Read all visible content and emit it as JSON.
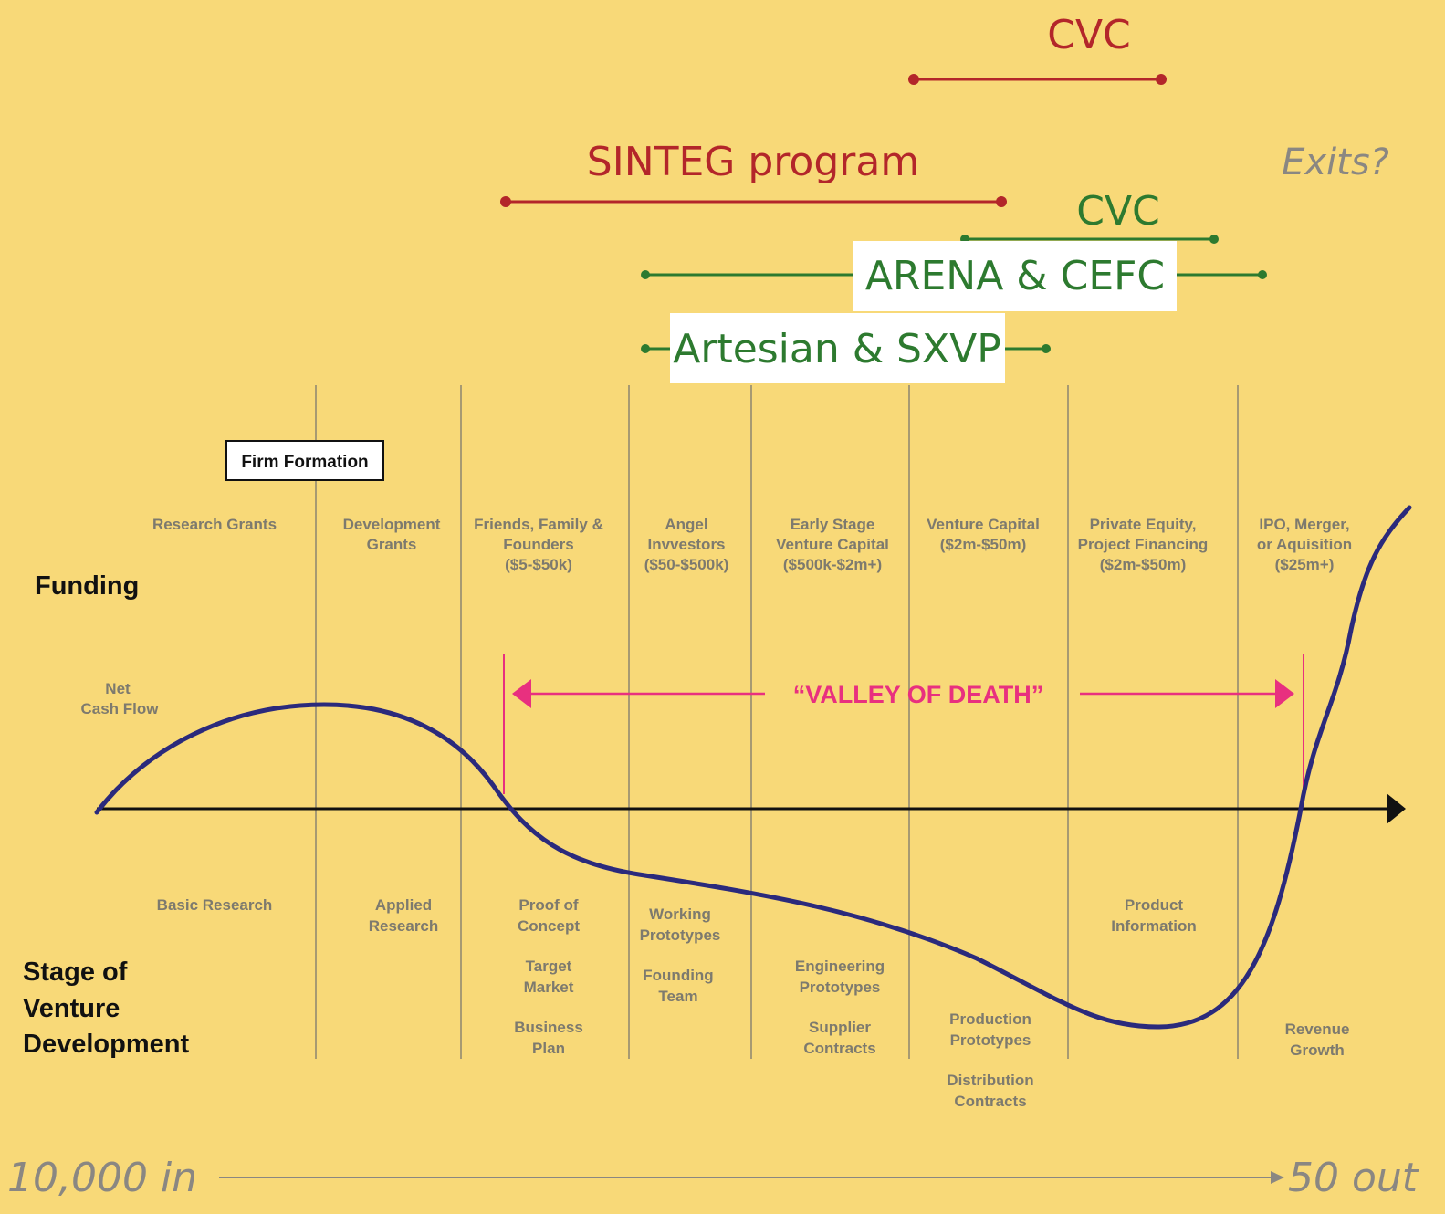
{
  "programs": [
    {
      "id": "cvc-top",
      "label": "CVC",
      "color": "#b3262a"
    },
    {
      "id": "sinteg",
      "label": "SINTEG program",
      "color": "#b3262a"
    },
    {
      "id": "cvc-green",
      "label": "CVC",
      "color": "#2d7a2f"
    },
    {
      "id": "arena-cefc",
      "label": "ARENA & CEFC",
      "color": "#2d7a2f"
    },
    {
      "id": "artesian-sxvp",
      "label": "Artesian & SXVP",
      "color": "#2d7a2f"
    }
  ],
  "exits_label": "Exits?",
  "firm_formation": "Firm Formation",
  "axis": {
    "funding": "Funding",
    "net_cash_flow": [
      "Net",
      "Cash Flow"
    ],
    "stage": [
      "Stage of",
      "Venture",
      "Development"
    ]
  },
  "valley_label": "“VALLEY OF DEATH”",
  "funding_stages": [
    [
      "Research Grants"
    ],
    [
      "Development",
      "Grants"
    ],
    [
      "Friends, Family &",
      "Founders",
      "($5-$50k)"
    ],
    [
      "Angel",
      "Invvestors",
      "($50-$500k)"
    ],
    [
      "Early Stage",
      "Venture Capital",
      "($500k-$2m+)"
    ],
    [
      "Venture Capital",
      "($2m-$50m)"
    ],
    [
      "Private Equity,",
      "Project Financing",
      "($2m-$50m)"
    ],
    [
      "IPO, Merger,",
      "or Aquisition",
      "($25m+)"
    ]
  ],
  "venture_stages": [
    [
      "Basic Research"
    ],
    [
      "Applied",
      "Research"
    ],
    [
      "Proof of",
      "Concept"
    ],
    [
      "Target",
      "Market"
    ],
    [
      "Business",
      "Plan"
    ],
    [
      "Working",
      "Prototypes"
    ],
    [
      "Founding",
      "Team"
    ],
    [
      "Engineering",
      "Prototypes"
    ],
    [
      "Supplier",
      "Contracts"
    ],
    [
      "Production",
      "Prototypes"
    ],
    [
      "Distribution",
      "Contracts"
    ],
    [
      "Product",
      "Information"
    ],
    [
      "Revenue",
      "Growth"
    ]
  ],
  "funnel": {
    "in": "10,000 in",
    "out": "50 out"
  },
  "colors": {
    "background": "#f8d978",
    "curve": "#2b2a7c",
    "valley": "#e8307f",
    "divider": "#8c8670"
  }
}
